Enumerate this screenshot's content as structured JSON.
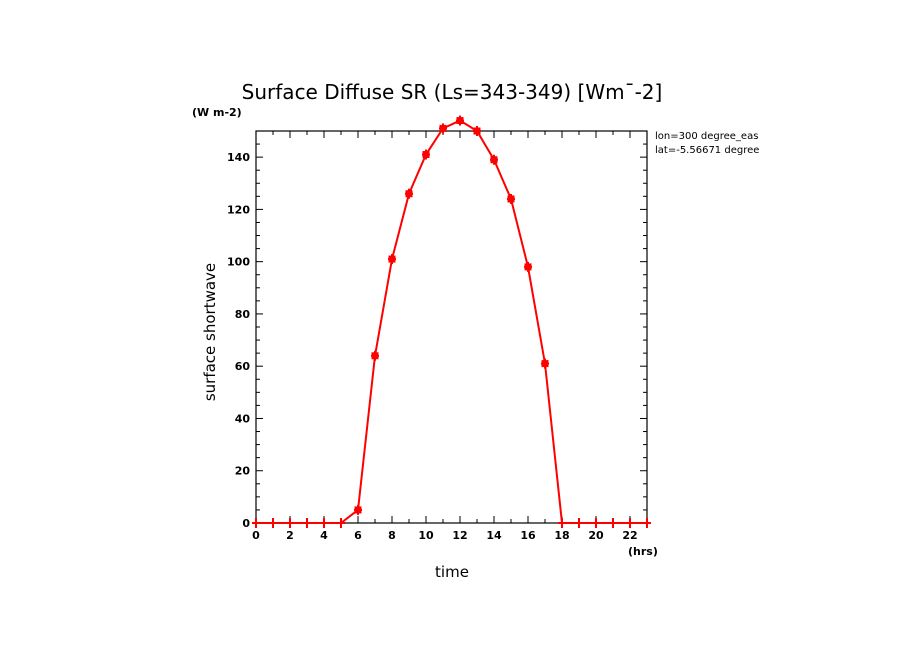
{
  "chart_data": {
    "type": "line",
    "title": "Surface Diffuse SR (Ls=343-349) [Wm^-2]",
    "units_label": "(W m-2)",
    "xlabel": "time",
    "ylabel": "surface shortwave",
    "x_unit_label": "(hrs)",
    "info": [
      "lon=300 degree_eas",
      "lat=-5.56671 degree"
    ],
    "xlim": [
      0,
      23
    ],
    "ylim": [
      0,
      150
    ],
    "xticks": [
      0,
      2,
      4,
      6,
      8,
      10,
      12,
      14,
      16,
      18,
      20,
      22
    ],
    "yticks": [
      0,
      20,
      40,
      60,
      80,
      100,
      120,
      140
    ],
    "line_color": "#ff0000",
    "series": [
      {
        "x": [
          0,
          1,
          2,
          3,
          4,
          5,
          6,
          7,
          8,
          9,
          10,
          11,
          12,
          13,
          14,
          15,
          16,
          17,
          18,
          19,
          20,
          21,
          22,
          23
        ],
        "values": [
          0,
          0,
          0,
          0,
          0,
          0,
          5,
          64,
          101,
          126,
          141,
          151,
          154,
          150,
          139,
          124,
          98,
          61,
          0,
          0,
          0,
          0,
          0,
          0
        ]
      }
    ]
  }
}
